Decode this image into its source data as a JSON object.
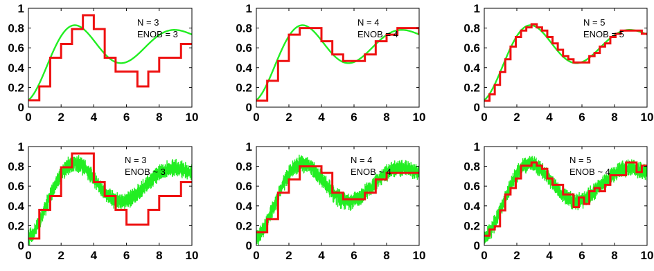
{
  "chart_data": [
    {
      "type": "line",
      "panel": "top-left",
      "annotation": [
        "N = 3",
        "ENOB = 3"
      ],
      "x_ticks": [
        "0",
        "2",
        "4",
        "6",
        "8",
        "10"
      ],
      "y_ticks": [
        "0",
        "0.2",
        "0.4",
        "0.6",
        "0.8",
        "1"
      ],
      "xlim": [
        0,
        10
      ],
      "ylim": [
        0,
        1
      ],
      "bits": 3,
      "noise": false,
      "series": [
        {
          "kind": "signal",
          "color": "#22ee22"
        },
        {
          "kind": "quantized",
          "color": "#ee1111",
          "x": [
            0,
            0.667,
            1.333,
            2,
            2.667,
            3.333,
            4,
            4.667,
            5.333,
            6,
            6.667,
            7.333,
            8,
            8.667,
            9.333,
            10
          ],
          "y": [
            0.07,
            0.21,
            0.5,
            0.64,
            0.79,
            0.93,
            0.79,
            0.5,
            0.36,
            0.36,
            0.21,
            0.36,
            0.5,
            0.5,
            0.64,
            0.64
          ]
        }
      ]
    },
    {
      "type": "line",
      "panel": "top-middle",
      "annotation": [
        "N = 4",
        "ENOB = 4"
      ],
      "x_ticks": [
        "0",
        "2",
        "4",
        "6",
        "8",
        "10"
      ],
      "y_ticks": [
        "0",
        "0.2",
        "0.4",
        "0.6",
        "0.8",
        "1"
      ],
      "xlim": [
        0,
        10
      ],
      "ylim": [
        0,
        1
      ],
      "bits": 4,
      "noise": false,
      "series": [
        {
          "kind": "signal",
          "color": "#22ee22"
        },
        {
          "kind": "quantized",
          "color": "#ee1111"
        }
      ]
    },
    {
      "type": "line",
      "panel": "top-right",
      "annotation": [
        "N = 5",
        "ENOB = 5"
      ],
      "x_ticks": [
        "0",
        "2",
        "4",
        "6",
        "8",
        "10"
      ],
      "y_ticks": [
        "0",
        "0.2",
        "0.4",
        "0.6",
        "0.8",
        "1"
      ],
      "xlim": [
        0,
        10
      ],
      "ylim": [
        0,
        1
      ],
      "bits": 5,
      "noise": false,
      "series": [
        {
          "kind": "signal",
          "color": "#22ee22"
        },
        {
          "kind": "quantized",
          "color": "#ee1111"
        }
      ]
    },
    {
      "type": "line",
      "panel": "bottom-left",
      "annotation": [
        "N = 3",
        "ENOB ~ 3"
      ],
      "x_ticks": [
        "0",
        "2",
        "4",
        "6",
        "8",
        "10"
      ],
      "y_ticks": [
        "0",
        "0.2",
        "0.4",
        "0.6",
        "0.8",
        "1"
      ],
      "xlim": [
        0,
        10
      ],
      "ylim": [
        0,
        1
      ],
      "bits": 3,
      "noise": true,
      "series": [
        {
          "kind": "noisy-signal",
          "color": "#22ee22"
        },
        {
          "kind": "quantized",
          "color": "#ee1111",
          "x": [
            0,
            0.667,
            1.333,
            2,
            2.667,
            3.333,
            4,
            4.667,
            5.333,
            6,
            6.667,
            7.333,
            8,
            8.667,
            9.333,
            10
          ],
          "y": [
            0.07,
            0.36,
            0.5,
            0.79,
            0.93,
            0.93,
            0.64,
            0.5,
            0.36,
            0.21,
            0.21,
            0.36,
            0.5,
            0.5,
            0.64,
            0.64
          ]
        }
      ]
    },
    {
      "type": "line",
      "panel": "bottom-middle",
      "annotation": [
        "N = 4",
        "ENOB ~ 4"
      ],
      "x_ticks": [
        "0",
        "2",
        "4",
        "6",
        "8",
        "10"
      ],
      "y_ticks": [
        "0",
        "0.2",
        "0.4",
        "0.6",
        "0.8",
        "1"
      ],
      "xlim": [
        0,
        10
      ],
      "ylim": [
        0,
        1
      ],
      "bits": 4,
      "noise": true,
      "series": [
        {
          "kind": "noisy-signal",
          "color": "#22ee22"
        },
        {
          "kind": "quantized",
          "color": "#ee1111"
        }
      ]
    },
    {
      "type": "line",
      "panel": "bottom-right",
      "annotation": [
        "N = 5",
        "ENOB ~ 4"
      ],
      "x_ticks": [
        "0",
        "2",
        "4",
        "6",
        "8",
        "10"
      ],
      "y_ticks": [
        "0",
        "0.2",
        "0.4",
        "0.6",
        "0.8",
        "1"
      ],
      "xlim": [
        0,
        10
      ],
      "ylim": [
        0,
        1
      ],
      "bits": 5,
      "noise": true,
      "series": [
        {
          "kind": "noisy-signal",
          "color": "#22ee22"
        },
        {
          "kind": "quantized",
          "color": "#ee1111"
        }
      ]
    }
  ]
}
